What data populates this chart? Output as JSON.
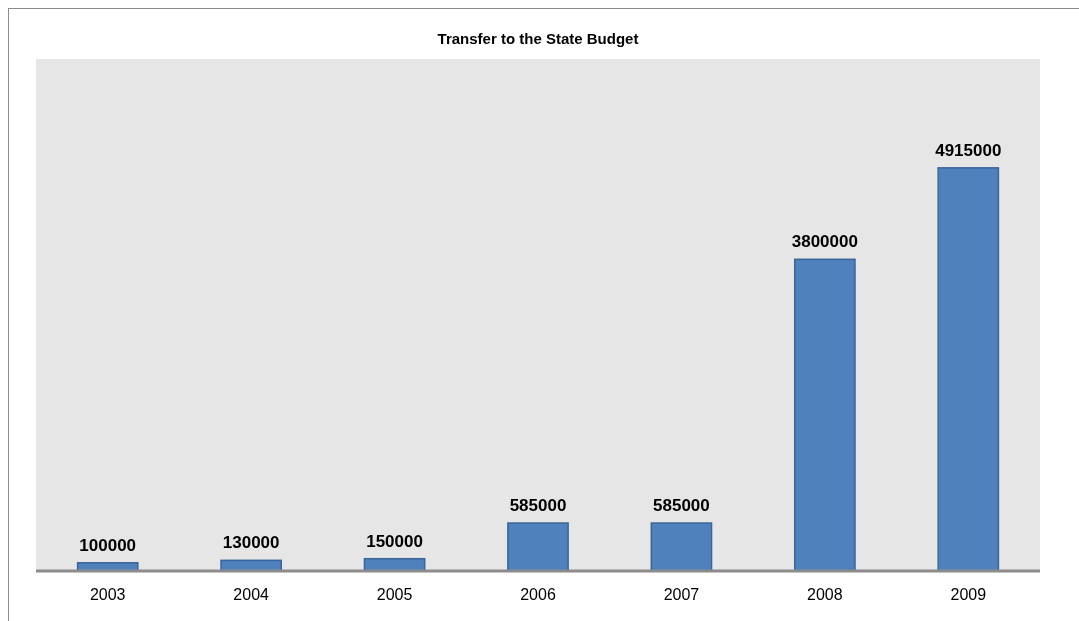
{
  "chart_data": {
    "type": "bar",
    "title": "Transfer to the State Budget",
    "categories": [
      "2003",
      "2004",
      "2005",
      "2006",
      "2007",
      "2008",
      "2009"
    ],
    "values": [
      100000,
      130000,
      150000,
      585000,
      585000,
      3800000,
      4915000
    ],
    "color": "#4f81bd",
    "data_labels": true
  }
}
